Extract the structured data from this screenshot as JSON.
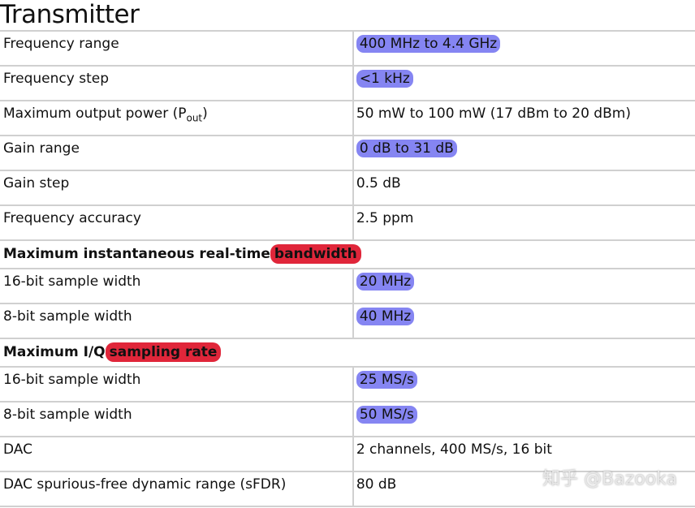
{
  "title": "Transmitter",
  "colors": {
    "blue_highlight": "#8585f2",
    "red_highlight": "#e0263a"
  },
  "rows": [
    {
      "label": "Frequency range",
      "value": "400 MHz to 4.4 GHz",
      "highlight": "blue"
    },
    {
      "label": "Frequency step",
      "value": "<1 kHz",
      "highlight": "blue"
    },
    {
      "label": "Maximum output power (P",
      "label_sub": "out",
      "label_end": ")",
      "value": "50 mW to 100 mW (17 dBm to 20 dBm)"
    },
    {
      "label": "Gain range",
      "value": "0 dB to 31 dB",
      "highlight": "blue"
    },
    {
      "label": "Gain step",
      "value": "0.5 dB"
    },
    {
      "label": "Frequency accuracy",
      "value": "2.5 ppm"
    }
  ],
  "section1": {
    "text": "Maximum instantaneous real-time",
    "highlight": "bandwidth"
  },
  "rows1": [
    {
      "label": "16-bit sample width",
      "value": "20 MHz"
    },
    {
      "label": "8-bit sample width",
      "value": "40 MHz"
    }
  ],
  "section2": {
    "text": "Maximum I/Q",
    "highlight": "sampling rate"
  },
  "rows2": [
    {
      "label": "16-bit sample width",
      "value": "25 MS/s"
    },
    {
      "label": "8-bit sample width",
      "value": "50 MS/s"
    },
    {
      "label": "DAC",
      "value": "2 channels, 400 MS/s, 16 bit"
    },
    {
      "label": "DAC spurious-free dynamic range (sFDR)",
      "value": "80 dB"
    }
  ],
  "watermark": "知乎 @Bazooka"
}
